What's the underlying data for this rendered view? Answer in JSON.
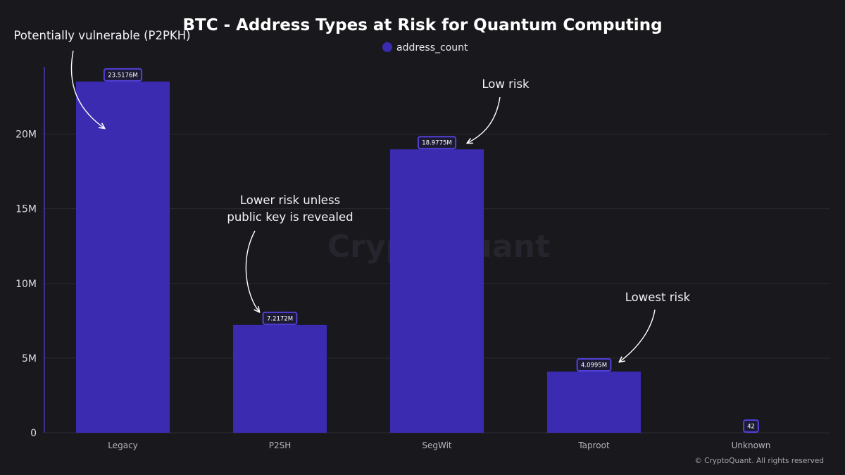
{
  "chart_data": {
    "type": "bar",
    "title": "BTC - Address Types at Risk for Quantum Computing",
    "categories": [
      "Legacy",
      "P2SH",
      "SegWit",
      "Taproot",
      "Unknown"
    ],
    "series": [
      {
        "name": "address_count",
        "values": [
          23517600,
          7217200,
          18977500,
          4099500,
          42
        ],
        "labels": [
          "23.5176M",
          "7.2172M",
          "18.9775M",
          "4.0995M",
          "42"
        ]
      }
    ],
    "ylim": [
      0,
      24500000
    ],
    "yticks": [
      0,
      5000000,
      10000000,
      15000000,
      20000000
    ],
    "ytick_labels": [
      "0",
      "5M",
      "10M",
      "15M",
      "20M"
    ],
    "grid": true,
    "legend_placement": "top-center",
    "annotations": [
      {
        "category": "Legacy",
        "lines": [
          "Potentially vulnerable (P2PKH)"
        ]
      },
      {
        "category": "P2SH",
        "lines": [
          "Lower risk unless",
          "public key is revealed"
        ]
      },
      {
        "category": "SegWit",
        "lines": [
          "Low risk"
        ]
      },
      {
        "category": "Taproot",
        "lines": [
          "Lowest risk"
        ]
      }
    ]
  },
  "watermark": "CryptoQuant",
  "copyright": "© CryptoQuant. All rights reserved",
  "colors": {
    "background": "#19181d",
    "bar": "#3a2bb1",
    "label_border": "#5140d8",
    "grid": "#2c2b33",
    "axis": "#4a3ab8"
  }
}
